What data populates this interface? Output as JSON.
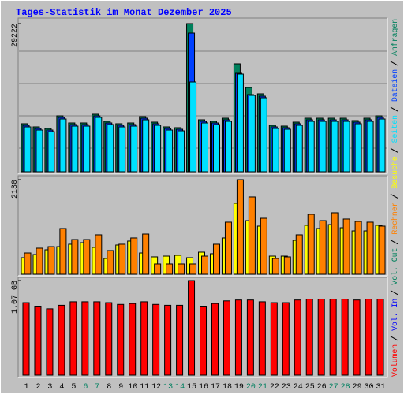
{
  "chart_data": [
    {
      "type": "bar",
      "title": "Tages-Statistik im Monat Dezember 2025",
      "ylim": [
        0,
        29222
      ],
      "yticks": [
        29222
      ],
      "series": [
        {
          "name": "Seiten",
          "color": "#00e0ff",
          "values": [
            8860,
            8238,
            7927,
            10414,
            9015,
            9015,
            10725,
            9326,
            8860,
            9015,
            10259,
            9171,
            8238,
            8083,
            17720,
            9637,
            9326,
            9948,
            19275,
            15078,
            14611,
            8549,
            8394,
            9171,
            9948,
            9948,
            9948,
            9948,
            9482,
            9948,
            10414
          ]
        },
        {
          "name": "Dateien",
          "color": "#0040ff",
          "values": [
            9171,
            8549,
            8238,
            10725,
            9326,
            9326,
            11036,
            9637,
            9171,
            9326,
            10570,
            9482,
            8549,
            8394,
            27357,
            9948,
            9637,
            10259,
            19430,
            15233,
            14923,
            8860,
            8705,
            9482,
            10259,
            10259,
            10259,
            10259,
            9793,
            10259,
            10725
          ]
        },
        {
          "name": "Anfragen",
          "color": "#00805c",
          "values": [
            9482,
            8860,
            8549,
            11036,
            9637,
            9637,
            11347,
            9948,
            9482,
            9637,
            10881,
            9793,
            8860,
            8705,
            29222,
            10259,
            9948,
            10570,
            21295,
            16632,
            15389,
            9171,
            9016,
            9793,
            10570,
            10570,
            10570,
            10570,
            10104,
            10570,
            11036
          ]
        }
      ]
    },
    {
      "type": "bar",
      "ylim": [
        0,
        2130
      ],
      "yticks": [
        2130
      ],
      "series": [
        {
          "name": "Rechner",
          "color": "#ff8000",
          "values": [
            479,
            586,
            621,
            1030,
            781,
            781,
            888,
            533,
            675,
            817,
            905,
            231,
            231,
            231,
            231,
            408,
            675,
            1172,
            2130,
            1740,
            1260,
            355,
            391,
            888,
            1349,
            1207,
            1385,
            1243,
            1189,
            1172,
            1083
          ]
        },
        {
          "name": "Besuche",
          "color": "#ffff00",
          "values": [
            373,
            444,
            550,
            621,
            675,
            710,
            604,
            355,
            657,
            746,
            479,
            391,
            408,
            426,
            373,
            497,
            462,
            817,
            1598,
            1207,
            1083,
            408,
            408,
            763,
            1101,
            1030,
            1118,
            1047,
            976,
            976,
            1101
          ]
        }
      ]
    },
    {
      "type": "bar",
      "ylim": [
        0,
        1.07
      ],
      "yticks": [
        {
          "value": 1.07,
          "label": "1.07 GB"
        }
      ],
      "categories": [
        "1",
        "2",
        "3",
        "4",
        "5",
        "6",
        "7",
        "8",
        "9",
        "10",
        "11",
        "12",
        "13",
        "14",
        "15",
        "16",
        "17",
        "18",
        "19",
        "20",
        "21",
        "22",
        "23",
        "24",
        "25",
        "26",
        "27",
        "28",
        "29",
        "30",
        "31"
      ],
      "category_colors": [
        "#000000",
        "#000000",
        "#000000",
        "#000000",
        "#000000",
        "#008060",
        "#008060",
        "#000000",
        "#000000",
        "#000000",
        "#000000",
        "#000000",
        "#008060",
        "#008060",
        "#000000",
        "#000000",
        "#000000",
        "#000000",
        "#000000",
        "#008060",
        "#008060",
        "#000000",
        "#000000",
        "#000000",
        "#000000",
        "#000000",
        "#008060",
        "#008060",
        "#000000",
        "#000000",
        "#000000"
      ],
      "series": [
        {
          "name": "Volumen",
          "color": "#ff0000",
          "values": [
            0.82,
            0.78,
            0.75,
            0.79,
            0.83,
            0.83,
            0.83,
            0.82,
            0.8,
            0.81,
            0.83,
            0.8,
            0.79,
            0.79,
            1.07,
            0.78,
            0.81,
            0.84,
            0.85,
            0.85,
            0.83,
            0.82,
            0.82,
            0.85,
            0.86,
            0.86,
            0.86,
            0.86,
            0.85,
            0.86,
            0.86
          ]
        },
        {
          "name": "Vol. In",
          "color": "#0000ff"
        },
        {
          "name": "Vol. Out",
          "color": "#00805c"
        }
      ]
    }
  ]
}
